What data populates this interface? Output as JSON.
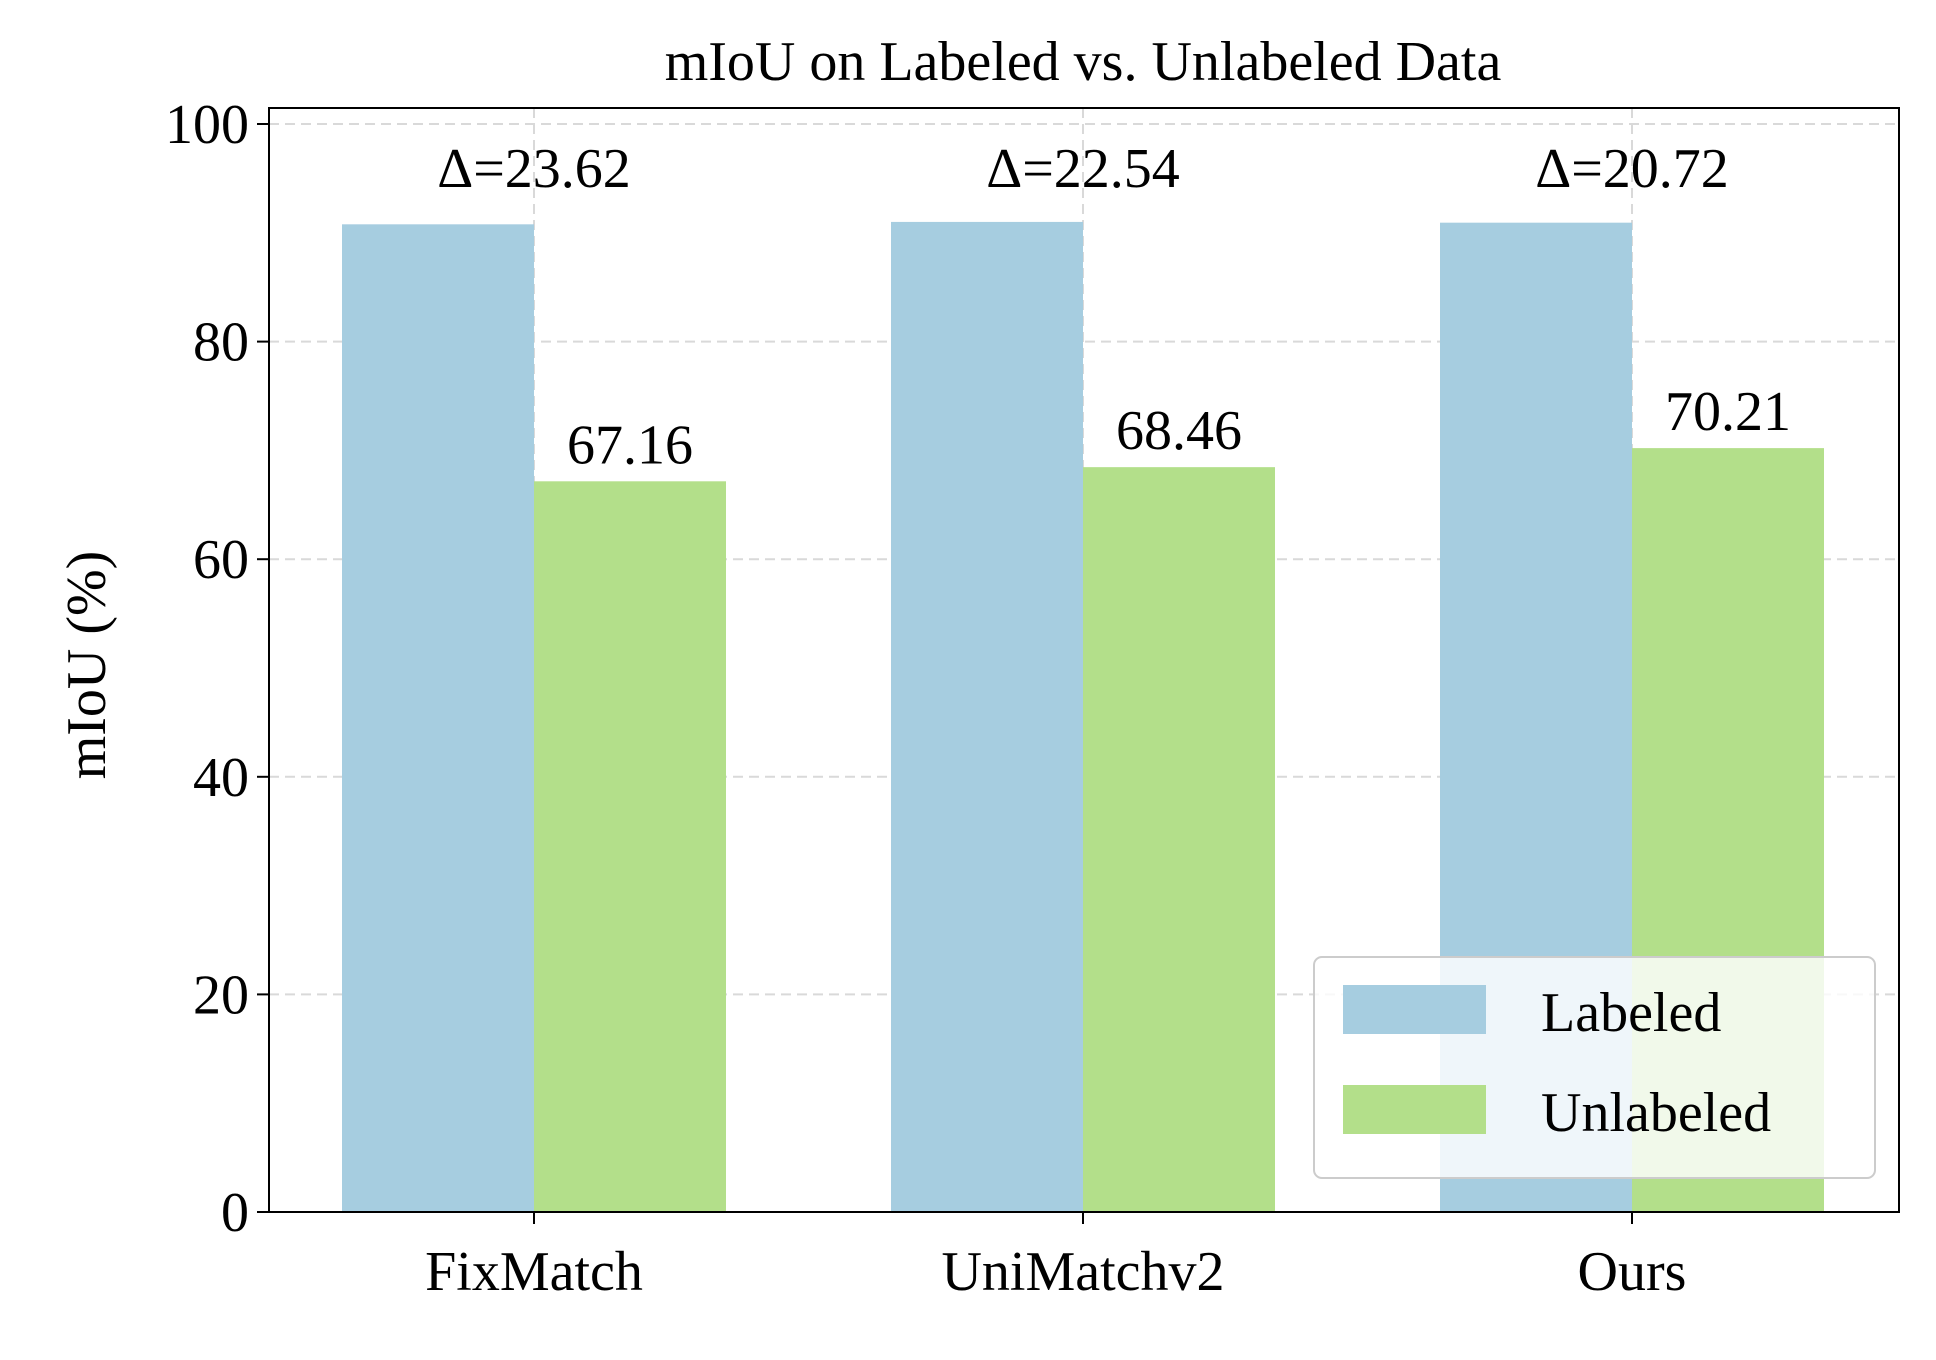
{
  "chart_data": {
    "type": "bar",
    "title": "mIoU on Labeled vs. Unlabeled Data",
    "xlabel": "",
    "ylabel": "mIoU (%)",
    "categories": [
      "FixMatch",
      "UniMatchv2",
      "Ours"
    ],
    "series": [
      {
        "name": "Labeled",
        "values": [
          90.78,
          91.0,
          90.93
        ],
        "color": "#a6cde0"
      },
      {
        "name": "Unlabeled",
        "values": [
          67.16,
          68.46,
          70.21
        ],
        "color": "#b3df8a"
      }
    ],
    "value_labels": [
      "67.16",
      "68.46",
      "70.21"
    ],
    "delta_labels": [
      "Δ=23.62",
      "Δ=22.54",
      "Δ=20.72"
    ],
    "ylim": [
      0,
      100
    ],
    "yticks": [
      0,
      20,
      40,
      60,
      80,
      100
    ],
    "grid": true,
    "grid_style": "dashed",
    "legend": {
      "position": "lower-right",
      "entries": [
        "Labeled",
        "Unlabeled"
      ]
    },
    "colors": {
      "labeled": "#a6cde0",
      "unlabeled": "#b3df8a",
      "grid": "#d9d9d9",
      "axis": "#000000"
    }
  }
}
